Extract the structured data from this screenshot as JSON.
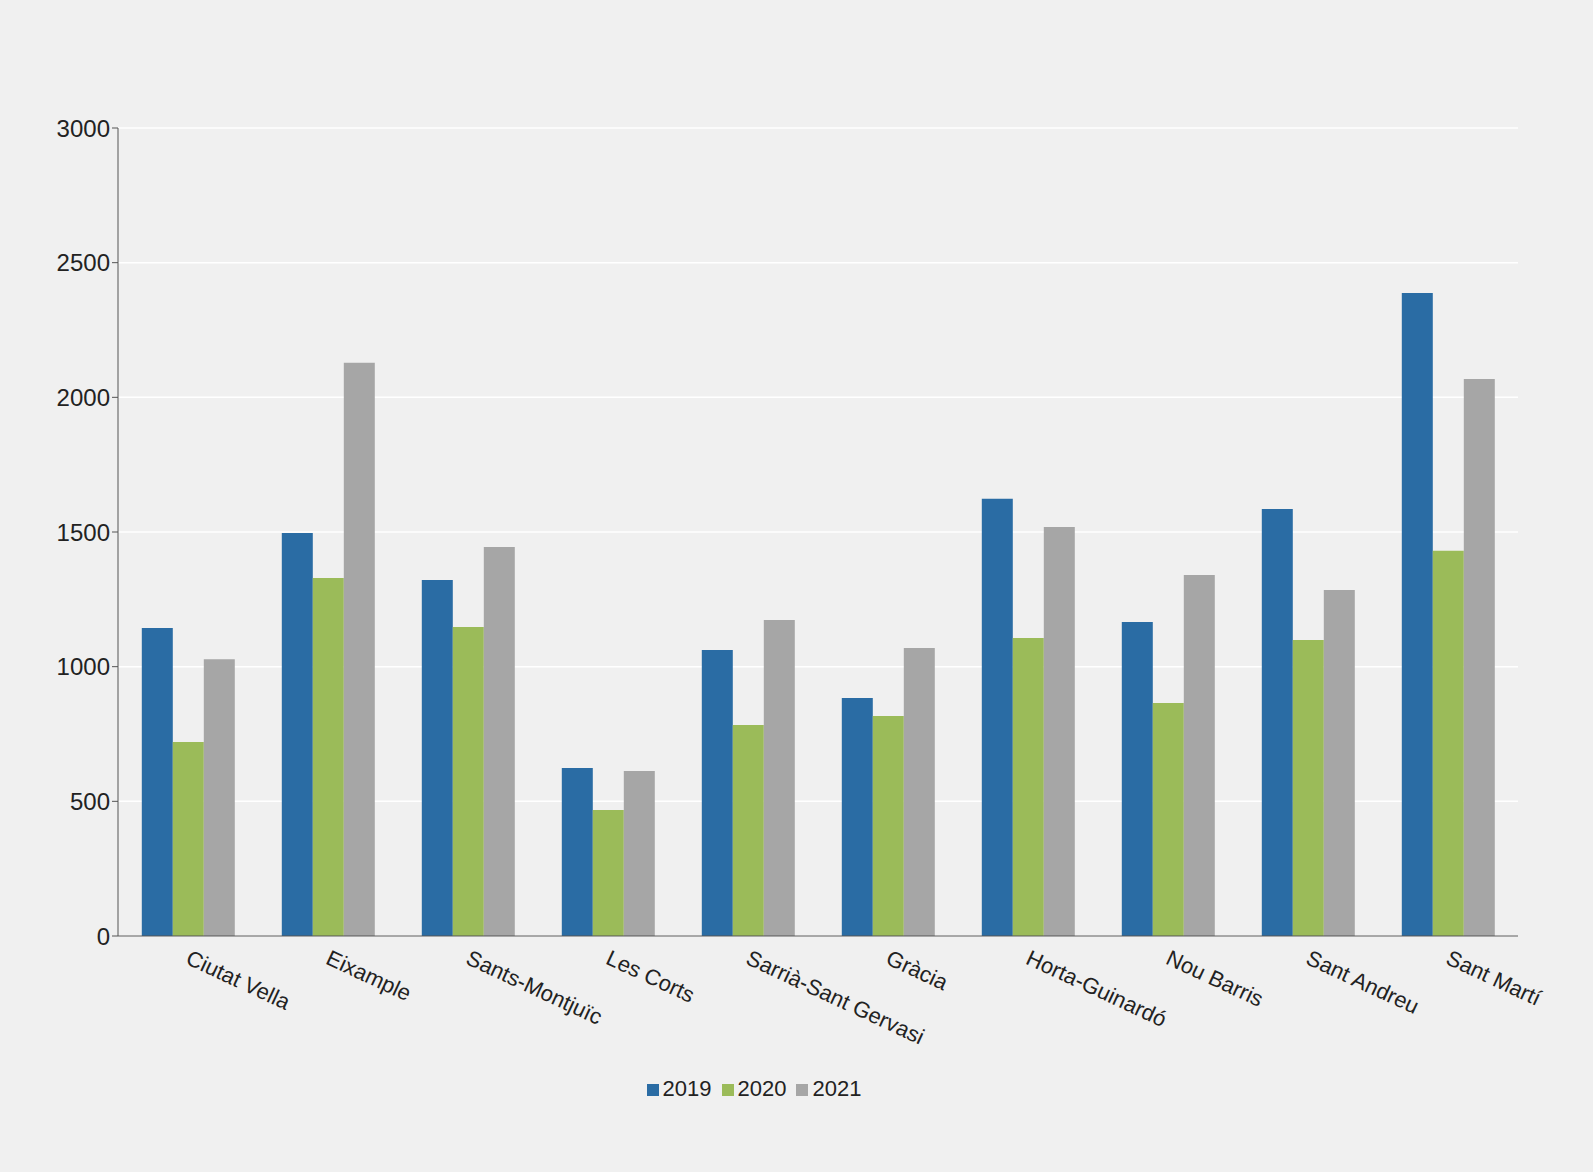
{
  "chart_data": {
    "type": "bar",
    "categories": [
      "Ciutat Vella",
      "Eixample",
      "Sants-Montjuïc",
      "Les Corts",
      "Sarrià-Sant Gervasi",
      "Gràcia",
      "Horta-Guinardó",
      "Nou Barris",
      "Sant Andreu",
      "Sant Martí"
    ],
    "series": [
      {
        "name": "2019",
        "color": "#2a6ca4",
        "values": [
          1144,
          1496,
          1322,
          624,
          1062,
          884,
          1623,
          1166,
          1585,
          2387
        ]
      },
      {
        "name": "2020",
        "color": "#9bbb59",
        "values": [
          720,
          1329,
          1147,
          468,
          783,
          817,
          1106,
          865,
          1099,
          1430
        ]
      },
      {
        "name": "2021",
        "color": "#a6a6a6",
        "values": [
          1028,
          2128,
          1444,
          613,
          1173,
          1069,
          1519,
          1340,
          1285,
          2068
        ]
      }
    ],
    "ylim": [
      0,
      3000
    ],
    "yticks": [
      0,
      500,
      1000,
      1500,
      2000,
      2500,
      3000
    ],
    "grid": true,
    "legend": "bottom"
  }
}
